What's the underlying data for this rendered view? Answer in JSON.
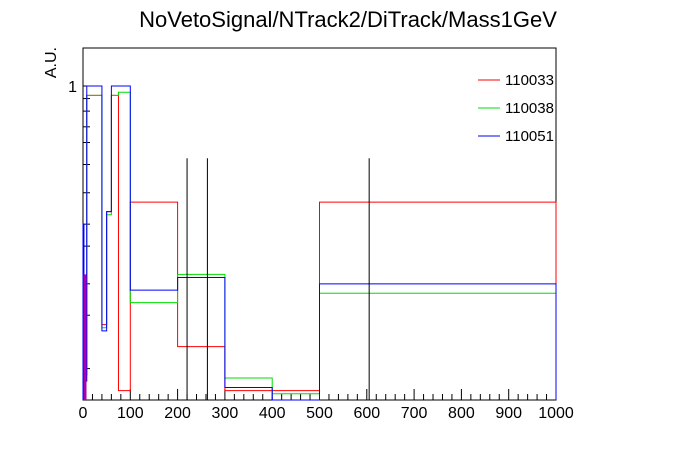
{
  "chart_data": {
    "type": "line",
    "title": "NoVetoSignal/NTrack2/DiTrack/Mass1GeV",
    "xlabel": "",
    "ylabel": "A.U.",
    "xlim": [
      0,
      1000
    ],
    "ylim": [
      0,
      1.1
    ],
    "x_ticks": [
      0,
      100,
      200,
      300,
      400,
      500,
      600,
      700,
      800,
      900,
      1000
    ],
    "x_tick_labels": [
      "0",
      "100",
      "200",
      "300",
      "400",
      "500",
      "600",
      "700",
      "800",
      "900",
      "1000"
    ],
    "y_ticks": [
      1
    ],
    "y_tick_labels": [
      "1"
    ],
    "legend_position": "top-right",
    "series": [
      {
        "name": "110033",
        "color": "#ff0000",
        "bin_edges": [
          0,
          2,
          4,
          6,
          8,
          10,
          40,
          50,
          60,
          75,
          100,
          200,
          300,
          400,
          500,
          1000
        ],
        "values": [
          0.4,
          0.3,
          0.15,
          0.08,
          0.97,
          0.97,
          0.24,
          0.6,
          0.97,
          0.03,
          0.63,
          0.17,
          0.03,
          0.03,
          0.63
        ]
      },
      {
        "name": "110038",
        "color": "#00dd00",
        "bin_edges": [
          0,
          2,
          4,
          6,
          8,
          10,
          40,
          50,
          60,
          75,
          100,
          200,
          300,
          400,
          500,
          1000
        ],
        "values": [
          0.36,
          0.28,
          0.14,
          0.08,
          0.97,
          0.97,
          0.23,
          0.59,
          0.97,
          0.98,
          0.31,
          0.4,
          0.07,
          0.02,
          0.34
        ]
      },
      {
        "name": "110051",
        "color": "#0000ff",
        "bin_edges": [
          0,
          2,
          4,
          6,
          8,
          10,
          40,
          50,
          60,
          75,
          100,
          200,
          300,
          400,
          500,
          1000
        ],
        "values": [
          0.56,
          0.35,
          0.12,
          0.06,
          1.0,
          1.0,
          0.22,
          0.6,
          1.0,
          1.0,
          0.35,
          0.39,
          0.04,
          0.0,
          0.37
        ]
      }
    ],
    "markers": [
      {
        "x": 220,
        "height": 0.77,
        "color": "#000000"
      },
      {
        "x": 263,
        "height": 0.77,
        "color": "#000000"
      },
      {
        "x": 605,
        "height": 0.77,
        "color": "#000000"
      }
    ]
  }
}
